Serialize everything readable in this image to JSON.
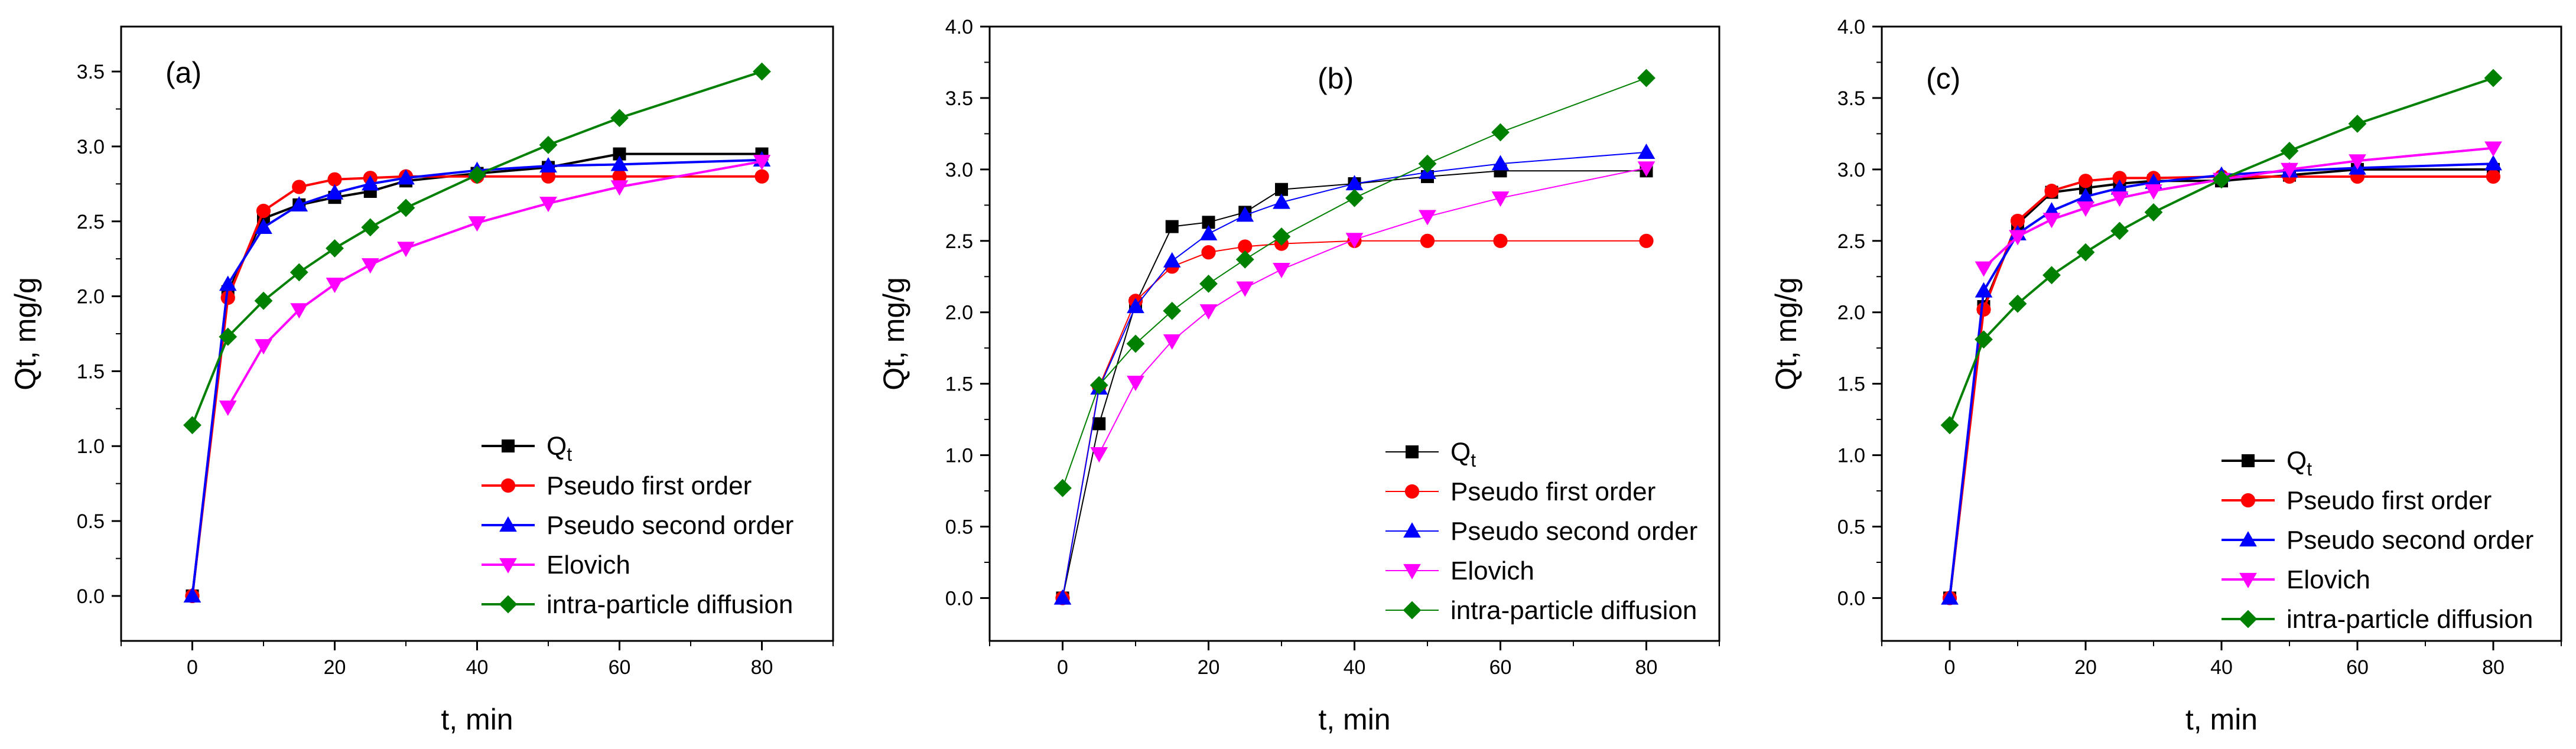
{
  "chart_data": [
    {
      "type": "line",
      "panel_label": "(a)",
      "xlabel": "t, min",
      "ylabel": "Qt, mg/g",
      "xlim": [
        -10,
        90
      ],
      "ylim": [
        -0.3,
        3.8
      ],
      "xticks": [
        0,
        20,
        40,
        60,
        80
      ],
      "yticks": [
        0.0,
        0.5,
        1.0,
        1.5,
        2.0,
        2.5,
        3.0,
        3.5
      ],
      "ytick_format": 1,
      "legend_position": "bottom-right",
      "series": [
        {
          "name": "Qt",
          "legend_main": "Q",
          "legend_sub": "t",
          "color": "#000000",
          "marker": "square",
          "x": [
            0,
            5,
            10,
            15,
            20,
            25,
            30,
            40,
            50,
            60,
            80
          ],
          "y": [
            0.0,
            2.03,
            2.52,
            2.61,
            2.66,
            2.7,
            2.77,
            2.82,
            2.86,
            2.95,
            2.95
          ]
        },
        {
          "name": "Pseudo first order",
          "color": "#ff0000",
          "marker": "circle",
          "x": [
            0,
            5,
            10,
            15,
            20,
            25,
            30,
            40,
            50,
            60,
            80
          ],
          "y": [
            0.0,
            1.99,
            2.57,
            2.73,
            2.78,
            2.79,
            2.8,
            2.8,
            2.8,
            2.8,
            2.8
          ]
        },
        {
          "name": "Pseudo second order",
          "color": "#0000ff",
          "marker": "triangle-up",
          "x": [
            0,
            5,
            10,
            15,
            20,
            25,
            30,
            40,
            50,
            60,
            80
          ],
          "y": [
            0.0,
            2.08,
            2.46,
            2.61,
            2.69,
            2.75,
            2.79,
            2.84,
            2.87,
            2.88,
            2.91
          ]
        },
        {
          "name": "Elovich",
          "color": "#ff00ff",
          "marker": "triangle-down",
          "x": [
            5,
            10,
            15,
            20,
            25,
            30,
            40,
            50,
            60,
            80
          ],
          "y": [
            1.26,
            1.67,
            1.91,
            2.08,
            2.21,
            2.32,
            2.49,
            2.62,
            2.73,
            2.9
          ]
        },
        {
          "name": "intra-particle diffusion",
          "color": "#008000",
          "marker": "diamond",
          "x": [
            0,
            5,
            10,
            15,
            20,
            25,
            30,
            40,
            50,
            60,
            80
          ],
          "y": [
            1.14,
            1.73,
            1.97,
            2.16,
            2.32,
            2.46,
            2.59,
            2.81,
            3.01,
            3.19,
            3.5
          ]
        }
      ]
    },
    {
      "type": "line",
      "panel_label": "(b)",
      "xlabel": "t, min",
      "ylabel": "Qt, mg/g",
      "xlim": [
        -10,
        90
      ],
      "ylim": [
        -0.3,
        4.0
      ],
      "xticks": [
        0,
        20,
        40,
        60,
        80
      ],
      "yticks": [
        0.0,
        0.5,
        1.0,
        1.5,
        2.0,
        2.5,
        3.0,
        3.5,
        4.0
      ],
      "ytick_format": 1,
      "legend_position": "bottom-right",
      "series": [
        {
          "name": "Qt",
          "legend_main": "Q",
          "legend_sub": "t",
          "color": "#000000",
          "marker": "square",
          "x": [
            0,
            5,
            10,
            15,
            20,
            25,
            30,
            40,
            50,
            60,
            80
          ],
          "y": [
            0.0,
            1.22,
            2.06,
            2.6,
            2.63,
            2.7,
            2.86,
            2.9,
            2.95,
            2.99,
            2.99
          ]
        },
        {
          "name": "Pseudo first order",
          "color": "#ff0000",
          "marker": "circle",
          "x": [
            0,
            5,
            10,
            15,
            20,
            25,
            30,
            40,
            50,
            60,
            80
          ],
          "y": [
            0.0,
            1.48,
            2.08,
            2.32,
            2.42,
            2.46,
            2.48,
            2.5,
            2.5,
            2.5,
            2.5
          ]
        },
        {
          "name": "Pseudo second order",
          "color": "#0000ff",
          "marker": "triangle-up",
          "x": [
            0,
            5,
            10,
            15,
            20,
            25,
            30,
            40,
            50,
            60,
            80
          ],
          "y": [
            0.0,
            1.47,
            2.04,
            2.36,
            2.55,
            2.68,
            2.77,
            2.9,
            2.98,
            3.04,
            3.12
          ]
        },
        {
          "name": "Elovich",
          "color": "#ff00ff",
          "marker": "triangle-down",
          "x": [
            5,
            10,
            15,
            20,
            25,
            30,
            40,
            50,
            60,
            80
          ],
          "y": [
            1.01,
            1.51,
            1.8,
            2.01,
            2.17,
            2.3,
            2.51,
            2.67,
            2.8,
            3.01
          ]
        },
        {
          "name": "intra-particle diffusion",
          "color": "#008000",
          "marker": "diamond",
          "x": [
            0,
            5,
            10,
            15,
            20,
            25,
            30,
            40,
            50,
            60,
            80
          ],
          "y": [
            0.77,
            1.49,
            1.78,
            2.01,
            2.2,
            2.37,
            2.53,
            2.8,
            3.04,
            3.26,
            3.64
          ]
        }
      ]
    },
    {
      "type": "line",
      "panel_label": "(c)",
      "xlabel": "t, min",
      "ylabel": "Qt, mg/g",
      "xlim": [
        -10,
        90
      ],
      "ylim": [
        -0.3,
        4.0
      ],
      "xticks": [
        0,
        20,
        40,
        60,
        80
      ],
      "yticks": [
        0.0,
        0.5,
        1.0,
        1.5,
        2.0,
        2.5,
        3.0,
        3.5,
        4.0
      ],
      "ytick_format": 1,
      "legend_position": "bottom-right",
      "series": [
        {
          "name": "Qt",
          "legend_main": "Q",
          "legend_sub": "t",
          "color": "#000000",
          "marker": "square",
          "x": [
            0,
            5,
            10,
            15,
            20,
            25,
            30,
            40,
            50,
            60,
            80
          ],
          "y": [
            0.0,
            2.04,
            2.62,
            2.84,
            2.87,
            2.9,
            2.92,
            2.92,
            2.96,
            3.0,
            3.0
          ]
        },
        {
          "name": "Pseudo first order",
          "color": "#ff0000",
          "marker": "circle",
          "x": [
            0,
            5,
            10,
            15,
            20,
            25,
            30,
            40,
            50,
            60,
            80
          ],
          "y": [
            0.0,
            2.02,
            2.64,
            2.85,
            2.92,
            2.94,
            2.94,
            2.95,
            2.95,
            2.95,
            2.95
          ]
        },
        {
          "name": "Pseudo second order",
          "color": "#0000ff",
          "marker": "triangle-up",
          "x": [
            0,
            5,
            10,
            15,
            20,
            25,
            30,
            40,
            50,
            60,
            80
          ],
          "y": [
            0.0,
            2.15,
            2.55,
            2.71,
            2.81,
            2.87,
            2.91,
            2.96,
            2.99,
            3.01,
            3.04
          ]
        },
        {
          "name": "Elovich",
          "color": "#ff00ff",
          "marker": "triangle-down",
          "x": [
            5,
            10,
            15,
            20,
            25,
            30,
            40,
            50,
            60,
            80
          ],
          "y": [
            2.31,
            2.53,
            2.65,
            2.73,
            2.8,
            2.85,
            2.93,
            3.0,
            3.06,
            3.15
          ]
        },
        {
          "name": "intra-particle diffusion",
          "color": "#008000",
          "marker": "diamond",
          "x": [
            0,
            5,
            10,
            15,
            20,
            25,
            30,
            40,
            50,
            60,
            80
          ],
          "y": [
            1.21,
            1.81,
            2.06,
            2.26,
            2.42,
            2.57,
            2.7,
            2.93,
            3.13,
            3.32,
            3.64
          ]
        }
      ]
    }
  ]
}
